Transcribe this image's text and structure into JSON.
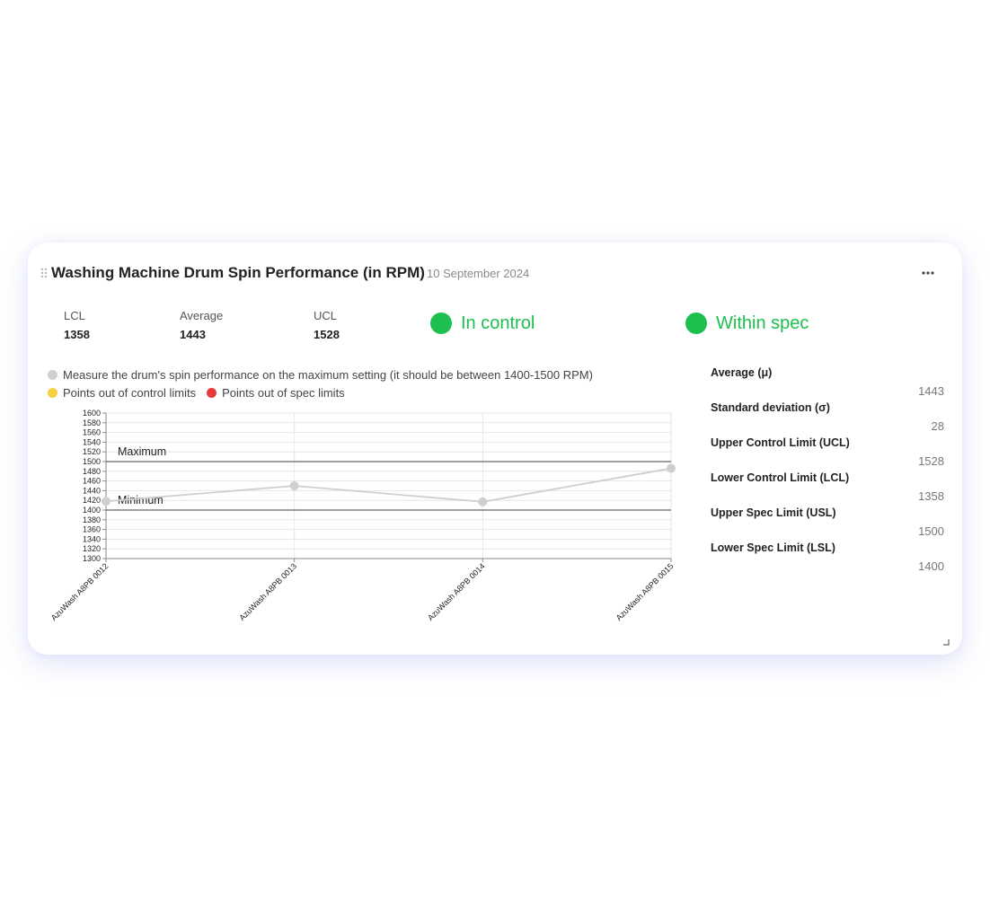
{
  "widget": {
    "title": "Washing Machine Drum Spin Performance (in RPM)",
    "date": "10 September 2024",
    "more_icon": "more-horizontal-icon",
    "drag_icon": "drag-handle-icon",
    "resize_icon": "resize-corner-icon"
  },
  "summary": {
    "lcl_label": "LCL",
    "lcl_value": "1358",
    "average_label": "Average",
    "average_value": "1443",
    "ucl_label": "UCL",
    "ucl_value": "1528"
  },
  "status": {
    "control_text": "In control",
    "spec_text": "Within spec",
    "ok_color": "#1dbf4f"
  },
  "legend": {
    "measure_text": "Measure the drum's spin performance on the maximum setting (it should be between 1400-1500 RPM)",
    "control_text": "Points out of control limits",
    "spec_text": "Points out of spec limits",
    "measure_color": "#cfcfcf",
    "control_color": "#f7d040",
    "spec_color": "#e83a3a"
  },
  "stats": [
    {
      "label": "Average (μ)",
      "value": "1443"
    },
    {
      "label": "Standard deviation (σ)",
      "value": "28"
    },
    {
      "label": "Upper Control Limit (UCL)",
      "value": "1528"
    },
    {
      "label": "Lower Control Limit (LCL)",
      "value": "1358"
    },
    {
      "label": "Upper Spec Limit (USL)",
      "value": "1500"
    },
    {
      "label": "Lower Spec Limit (LSL)",
      "value": "1400"
    }
  ],
  "chart_data": {
    "type": "line",
    "categories": [
      "AzuWash A8PB 0012",
      "AzuWash A8PB 0013",
      "AzuWash A8PB 0014",
      "AzuWash A8PB 0015"
    ],
    "series": [
      {
        "values": [
          1418,
          1450,
          1417,
          1486
        ],
        "color": "#cfcfcf"
      }
    ],
    "ylim": [
      1300,
      1600
    ],
    "yticks": [
      1600,
      1580,
      1560,
      1540,
      1520,
      1500,
      1480,
      1460,
      1440,
      1420,
      1400,
      1380,
      1360,
      1340,
      1320,
      1300
    ],
    "reference_lines": [
      {
        "label": "Maximum",
        "value": 1500
      },
      {
        "label": "Minimum",
        "value": 1400
      }
    ],
    "grid": true
  }
}
